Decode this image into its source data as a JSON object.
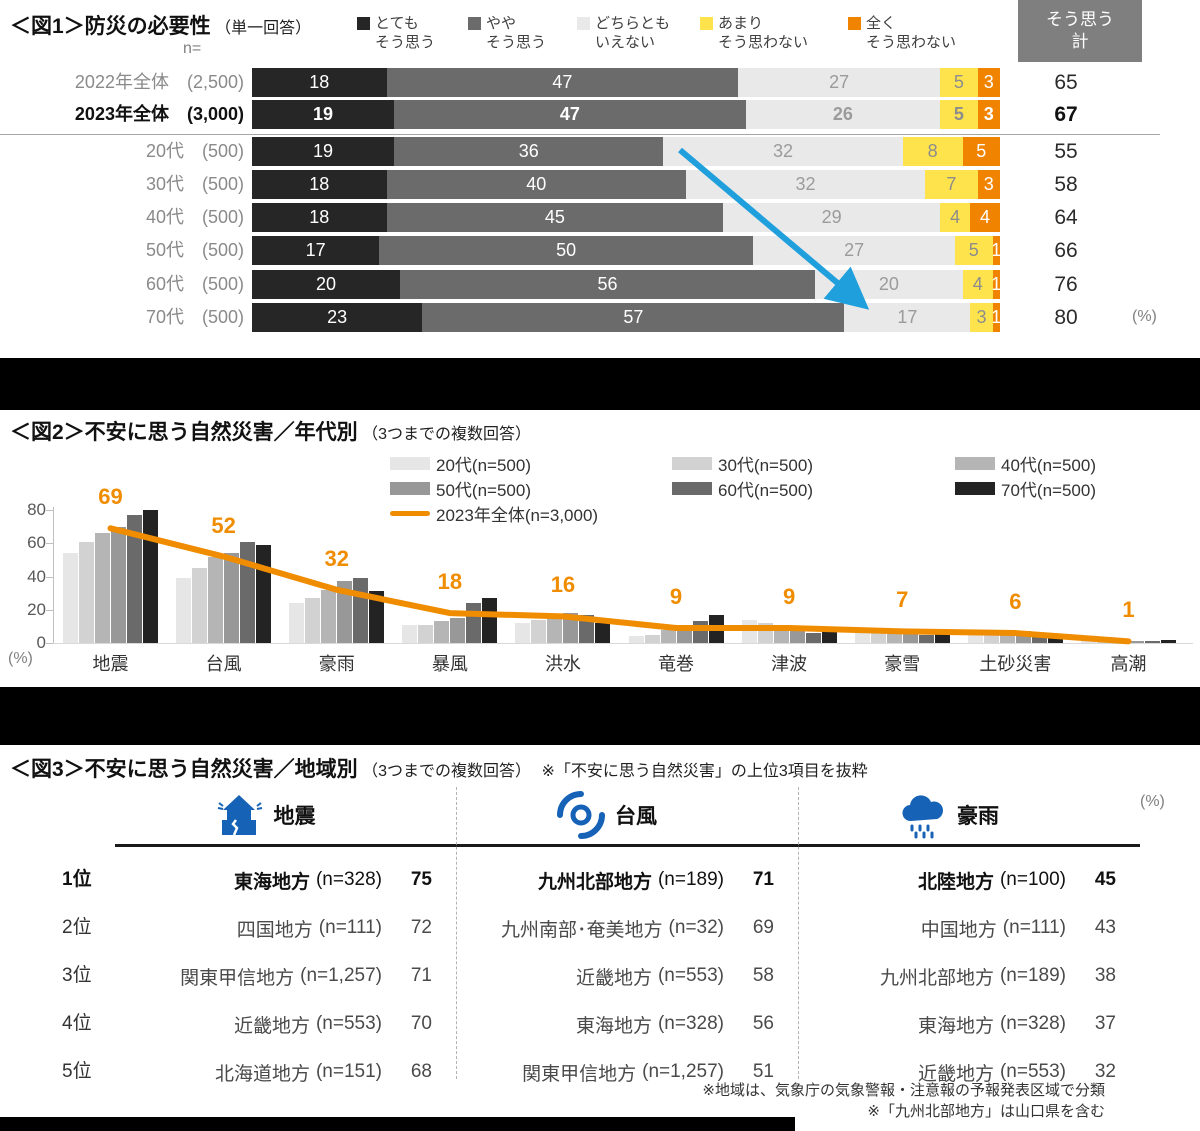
{
  "chart_data": [
    {
      "type": "stacked-bar-horizontal",
      "title": "＜図1＞防災の必要性",
      "subtitle": "（単一回答）",
      "n_label": "n=",
      "summary_header_line1": "そう思う",
      "summary_header_line2": "計",
      "percent_label": "(%)",
      "xlim": [
        0,
        100
      ],
      "legend": [
        {
          "line1": "とても",
          "line2": "そう思う",
          "color": "#262626"
        },
        {
          "line1": "やや",
          "line2": "そう思う",
          "color": "#6b6b6b"
        },
        {
          "line1": "どちらとも",
          "line2": "いえない",
          "color": "#e9e9e9"
        },
        {
          "line1": "あまり",
          "line2": "そう思わない",
          "color": "#ffe34d"
        },
        {
          "line1": "全く",
          "line2": "そう思わない",
          "color": "#f08300"
        }
      ],
      "segment_colors": [
        "#262626",
        "#6b6b6b",
        "#e9e9e9",
        "#ffe34d",
        "#f08300"
      ],
      "segment_text_colors": [
        "#ffffff",
        "#ffffff",
        "#9b9b9b",
        "#8c8c8c",
        "#ffffff"
      ],
      "rows": [
        {
          "label": "2022年全体",
          "n": "(2,500)",
          "values": [
            18,
            47,
            27,
            5,
            3
          ],
          "total": 65,
          "bold": false
        },
        {
          "label": "2023年全体",
          "n": "(3,000)",
          "values": [
            19,
            47,
            26,
            5,
            3
          ],
          "total": 67,
          "bold": true
        },
        {
          "label": "20代",
          "n": "(500)",
          "values": [
            19,
            36,
            32,
            8,
            5
          ],
          "total": 55,
          "bold": false
        },
        {
          "label": "30代",
          "n": "(500)",
          "values": [
            18,
            40,
            32,
            7,
            3
          ],
          "total": 58,
          "bold": false
        },
        {
          "label": "40代",
          "n": "(500)",
          "values": [
            18,
            45,
            29,
            4,
            4
          ],
          "total": 64,
          "bold": false
        },
        {
          "label": "50代",
          "n": "(500)",
          "values": [
            17,
            50,
            27,
            5,
            1
          ],
          "total": 66,
          "bold": false
        },
        {
          "label": "60代",
          "n": "(500)",
          "values": [
            20,
            56,
            20,
            4,
            1
          ],
          "total": 76,
          "bold": false
        },
        {
          "label": "70代",
          "n": "(500)",
          "values": [
            23,
            57,
            17,
            3,
            1
          ],
          "total": 80,
          "bold": false
        }
      ],
      "arrow_color": "#1f9fdc"
    },
    {
      "type": "bar+line",
      "title": "＜図2＞不安に思う自然災害／年代別",
      "subtitle": "（3つまでの複数回答）",
      "percent_label": "(%)",
      "ylim": [
        0,
        80
      ],
      "y_ticks": [
        80,
        60,
        40,
        20,
        0
      ],
      "grid": false,
      "legend_position": "top-right",
      "categories": [
        "地震",
        "台風",
        "豪雨",
        "暴風",
        "洪水",
        "竜巻",
        "津波",
        "豪雪",
        "土砂災害",
        "高潮"
      ],
      "series": [
        {
          "name": "20代(n=500)",
          "color": "#e6e6e6",
          "values": [
            54,
            39,
            24,
            11,
            12,
            4,
            14,
            6,
            8,
            1
          ]
        },
        {
          "name": "30代(n=500)",
          "color": "#d2d2d2",
          "values": [
            61,
            45,
            27,
            11,
            14,
            5,
            12,
            6,
            8,
            1
          ]
        },
        {
          "name": "40代(n=500)",
          "color": "#b5b5b5",
          "values": [
            66,
            52,
            32,
            13,
            16,
            8,
            10,
            6,
            8,
            1
          ]
        },
        {
          "name": "50代(n=500)",
          "color": "#989898",
          "values": [
            70,
            54,
            37,
            15,
            18,
            9,
            7,
            6,
            7,
            1
          ]
        },
        {
          "name": "60代(n=500)",
          "color": "#6a6a6a",
          "values": [
            77,
            61,
            39,
            24,
            17,
            13,
            6,
            5,
            6,
            1
          ]
        },
        {
          "name": "70代(n=500)",
          "color": "#232323",
          "values": [
            80,
            59,
            31,
            27,
            12,
            17,
            8,
            7,
            5,
            2
          ]
        }
      ],
      "line": {
        "name": "2023年全体(n=3,000)",
        "color": "#f08c00",
        "values": [
          69,
          52,
          32,
          18,
          16,
          9,
          9,
          7,
          6,
          1
        ]
      }
    },
    {
      "type": "table",
      "title": "＜図3＞不安に思う自然災害／地域別",
      "subtitle": "（3つまでの複数回答）",
      "note": "※「不安に思う自然災害」の上位3項目を抜粋",
      "percent_label": "(%)",
      "accent_color": "#1562b7",
      "rank_labels": [
        "1位",
        "2位",
        "3位",
        "4位",
        "5位"
      ],
      "columns": [
        {
          "label": "地震",
          "icon": "earthquake-house-icon",
          "rows": [
            {
              "region": "東海地方",
              "n": "(n=328)",
              "value": 75
            },
            {
              "region": "四国地方",
              "n": "(n=111)",
              "value": 72
            },
            {
              "region": "関東甲信地方",
              "n": "(n=1,257)",
              "value": 71
            },
            {
              "region": "近畿地方",
              "n": "(n=553)",
              "value": 70
            },
            {
              "region": "北海道地方",
              "n": "(n=151)",
              "value": 68
            }
          ]
        },
        {
          "label": "台風",
          "icon": "typhoon-icon",
          "rows": [
            {
              "region": "九州北部地方",
              "n": "(n=189)",
              "value": 71
            },
            {
              "region": "九州南部･奄美地方",
              "n": "(n=32)",
              "value": 69
            },
            {
              "region": "近畿地方",
              "n": "(n=553)",
              "value": 58
            },
            {
              "region": "東海地方",
              "n": "(n=328)",
              "value": 56
            },
            {
              "region": "関東甲信地方",
              "n": "(n=1,257)",
              "value": 51
            }
          ]
        },
        {
          "label": "豪雨",
          "icon": "heavy-rain-icon",
          "rows": [
            {
              "region": "北陸地方",
              "n": "(n=100)",
              "value": 45
            },
            {
              "region": "中国地方",
              "n": "(n=111)",
              "value": 43
            },
            {
              "region": "九州北部地方",
              "n": "(n=189)",
              "value": 38
            },
            {
              "region": "東海地方",
              "n": "(n=328)",
              "value": 37
            },
            {
              "region": "近畿地方",
              "n": "(n=553)",
              "value": 32
            }
          ]
        }
      ],
      "footnotes": [
        "※地域は、気象庁の気象警報・注意報の予報発表区域で分類",
        "※「九州北部地方」は山口県を含む"
      ]
    }
  ]
}
